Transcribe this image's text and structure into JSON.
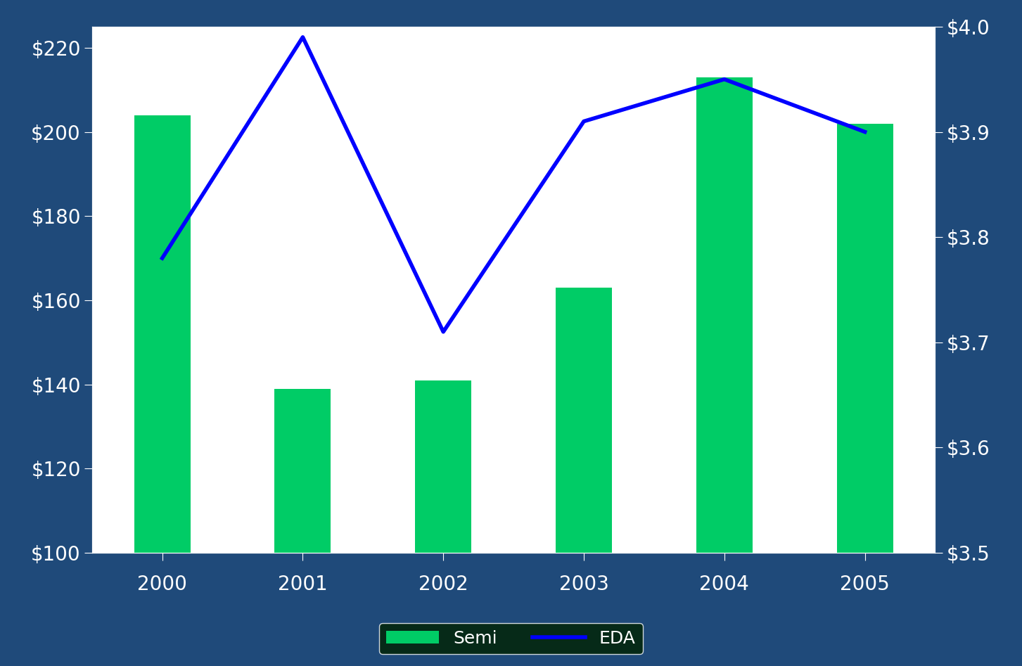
{
  "chart_data": {
    "type": "bar",
    "categories": [
      "2000",
      "2001",
      "2002",
      "2003",
      "2004",
      "2005"
    ],
    "series": [
      {
        "name": "Semi",
        "type": "bar",
        "color": "#00cc66",
        "values": [
          204,
          139,
          141,
          163,
          213,
          202
        ]
      },
      {
        "name": "EDA",
        "type": "line",
        "color": "#0000ff",
        "axis": "y2",
        "values": [
          3.78,
          3.99,
          3.71,
          3.91,
          3.95,
          3.9
        ]
      }
    ],
    "ylim": [
      100,
      225
    ],
    "yticks": [
      {
        "value": 100,
        "label": "$100"
      },
      {
        "value": 120,
        "label": "$120"
      },
      {
        "value": 140,
        "label": "$140"
      },
      {
        "value": 160,
        "label": "$160"
      },
      {
        "value": 180,
        "label": "$180"
      },
      {
        "value": 200,
        "label": "$200"
      },
      {
        "value": 220,
        "label": "$220"
      }
    ],
    "y2lim": [
      3.5,
      4.0
    ],
    "y2ticks": [
      {
        "value": 3.5,
        "label": "$3.5"
      },
      {
        "value": 3.6,
        "label": "$3.6"
      },
      {
        "value": 3.7,
        "label": "$3.7"
      },
      {
        "value": 3.8,
        "label": "$3.8"
      },
      {
        "value": 3.9,
        "label": "$3.9"
      },
      {
        "value": 4.0,
        "label": "$4.0"
      }
    ],
    "legend": "lower center",
    "grid": false
  }
}
